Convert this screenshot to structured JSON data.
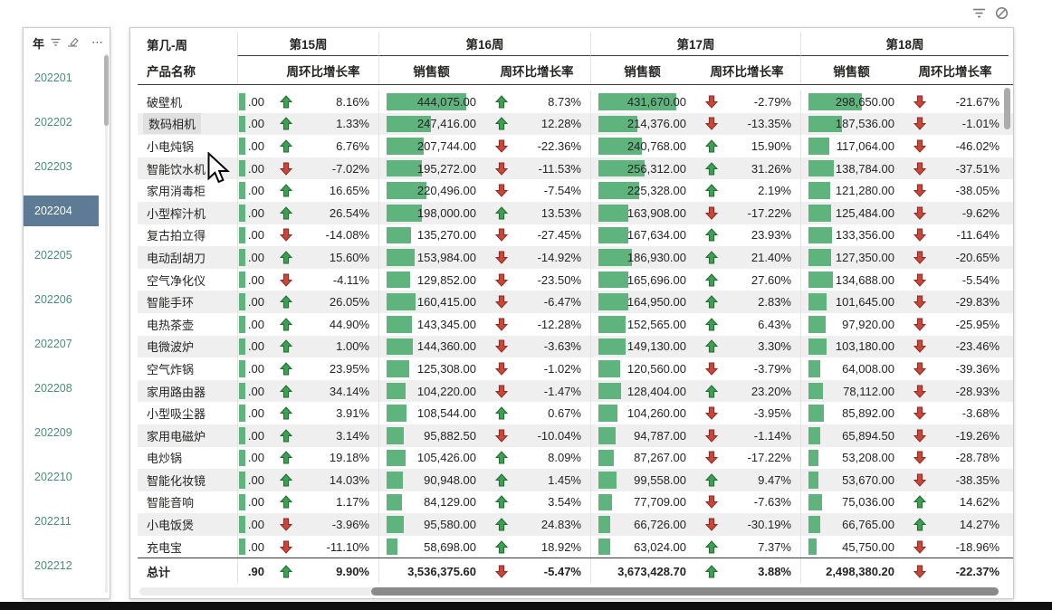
{
  "visual_header": {
    "filter_icon": "filter-icon",
    "block_icon": "block-icon"
  },
  "slicer": {
    "title": "年",
    "more_label": "⋯",
    "selected_bg": "#5d7b94",
    "item_color": "#4a8f75",
    "items": [
      {
        "label": "202201",
        "selected": false
      },
      {
        "label": "202202",
        "selected": false
      },
      {
        "label": "202203",
        "selected": false
      },
      {
        "label": "202204",
        "selected": true
      },
      {
        "label": "202205",
        "selected": false
      },
      {
        "label": "202206",
        "selected": false
      },
      {
        "label": "202207",
        "selected": false
      },
      {
        "label": "202208",
        "selected": false
      },
      {
        "label": "202209",
        "selected": false
      },
      {
        "label": "202210",
        "selected": false
      },
      {
        "label": "202211",
        "selected": false
      },
      {
        "label": "202212",
        "selected": false
      }
    ]
  },
  "matrix": {
    "corner_row1": "第几-周",
    "corner_row2": "产品名称",
    "weeks": [
      "第15周",
      "第16周",
      "第17周",
      "第18周"
    ],
    "columns": {
      "sales": "销售额",
      "rate": "周环比增长率"
    },
    "bar_color": "#5fb37c",
    "up_color": "#3f9e52",
    "down_color": "#c8473a",
    "rows": [
      {
        "name": "破壁机",
        "cut": ".00",
        "rates": [
          "8.16%",
          "8.73%",
          "-2.79%",
          "-21.67%"
        ],
        "sales": [
          "444,075.00",
          "431,670.00",
          "298,650.00"
        ]
      },
      {
        "name": "数码相机",
        "cut": ".00",
        "highlighted": true,
        "rates": [
          "1.33%",
          "12.28%",
          "-13.35%",
          "-1.01%"
        ],
        "sales": [
          "247,416.00",
          "214,376.00",
          "187,536.00"
        ]
      },
      {
        "name": "小电炖锅",
        "cut": ".00",
        "rates": [
          "6.76%",
          "-22.36%",
          "15.90%",
          "-46.02%"
        ],
        "sales": [
          "207,744.00",
          "240,768.00",
          "117,064.00"
        ]
      },
      {
        "name": "智能饮水机",
        "cut": ".00",
        "rates": [
          "-7.02%",
          "-11.53%",
          "31.26%",
          "-37.51%"
        ],
        "sales": [
          "195,272.00",
          "256,312.00",
          "138,784.00"
        ]
      },
      {
        "name": "家用消毒柜",
        "cut": ".00",
        "rates": [
          "16.65%",
          "-7.54%",
          "2.19%",
          "-38.05%"
        ],
        "sales": [
          "220,496.00",
          "225,328.00",
          "121,280.00"
        ]
      },
      {
        "name": "小型榨汁机",
        "cut": ".00",
        "rates": [
          "26.54%",
          "13.53%",
          "-17.22%",
          "-9.62%"
        ],
        "sales": [
          "198,000.00",
          "163,908.00",
          "125,484.00"
        ]
      },
      {
        "name": "复古拍立得",
        "cut": ".00",
        "rates": [
          "-14.08%",
          "-27.45%",
          "23.93%",
          "-11.64%"
        ],
        "sales": [
          "135,270.00",
          "167,634.00",
          "133,356.00"
        ]
      },
      {
        "name": "电动刮胡刀",
        "cut": ".00",
        "rates": [
          "15.60%",
          "-14.92%",
          "21.40%",
          "-20.65%"
        ],
        "sales": [
          "153,984.00",
          "186,930.00",
          "127,350.00"
        ]
      },
      {
        "name": "空气净化仪",
        "cut": ".00",
        "rates": [
          "-4.11%",
          "-23.50%",
          "27.60%",
          "-5.54%"
        ],
        "sales": [
          "129,852.00",
          "165,696.00",
          "134,688.00"
        ]
      },
      {
        "name": "智能手环",
        "cut": ".00",
        "rates": [
          "26.05%",
          "-6.47%",
          "2.83%",
          "-29.83%"
        ],
        "sales": [
          "160,415.00",
          "164,950.00",
          "101,645.00"
        ]
      },
      {
        "name": "电热茶壶",
        "cut": ".00",
        "rates": [
          "44.90%",
          "-12.28%",
          "6.43%",
          "-25.95%"
        ],
        "sales": [
          "143,345.00",
          "152,565.00",
          "97,920.00"
        ]
      },
      {
        "name": "电微波炉",
        "cut": ".00",
        "rates": [
          "1.00%",
          "-3.63%",
          "3.30%",
          "-23.46%"
        ],
        "sales": [
          "144,360.00",
          "149,130.00",
          "103,180.00"
        ]
      },
      {
        "name": "空气炸锅",
        "cut": ".00",
        "rates": [
          "23.95%",
          "-1.02%",
          "-3.79%",
          "-39.36%"
        ],
        "sales": [
          "125,308.00",
          "120,560.00",
          "64,008.00"
        ]
      },
      {
        "name": "家用路由器",
        "cut": ".00",
        "rates": [
          "34.14%",
          "-1.47%",
          "23.20%",
          "-28.93%"
        ],
        "sales": [
          "104,220.00",
          "128,404.00",
          "78,112.00"
        ]
      },
      {
        "name": "小型吸尘器",
        "cut": ".00",
        "rates": [
          "3.91%",
          "0.67%",
          "-3.95%",
          "-3.68%"
        ],
        "sales": [
          "108,544.00",
          "104,260.00",
          "85,892.00"
        ]
      },
      {
        "name": "家用电磁炉",
        "cut": ".00",
        "rates": [
          "3.14%",
          "-10.04%",
          "-1.14%",
          "-19.26%"
        ],
        "sales": [
          "95,882.50",
          "94,787.00",
          "65,894.50"
        ]
      },
      {
        "name": "电炒锅",
        "cut": ".00",
        "rates": [
          "19.18%",
          "8.09%",
          "-17.22%",
          "-28.78%"
        ],
        "sales": [
          "105,426.00",
          "87,267.00",
          "53,208.00"
        ]
      },
      {
        "name": "智能化妆镜",
        "cut": ".00",
        "rates": [
          "14.03%",
          "1.45%",
          "9.47%",
          "-38.35%"
        ],
        "sales": [
          "90,948.00",
          "99,558.00",
          "53,670.00"
        ]
      },
      {
        "name": "智能音响",
        "cut": ".00",
        "rates": [
          "1.17%",
          "3.54%",
          "-7.63%",
          "14.62%"
        ],
        "sales": [
          "84,129.00",
          "77,709.00",
          "75,036.00"
        ]
      },
      {
        "name": "小电饭煲",
        "cut": ".00",
        "rates": [
          "-3.96%",
          "24.83%",
          "-30.19%",
          "14.27%"
        ],
        "sales": [
          "95,580.00",
          "66,726.00",
          "66,765.00"
        ]
      },
      {
        "name": "充电宝",
        "cut": ".00",
        "rates": [
          "-11.10%",
          "18.92%",
          "7.37%",
          "-18.96%"
        ],
        "sales": [
          "58,698.00",
          "63,024.00",
          "45,750.00"
        ]
      }
    ],
    "total": {
      "name": "总计",
      "cut": ".90",
      "rates": [
        "9.90%",
        "-5.47%",
        "3.88%",
        "-22.37%"
      ],
      "sales": [
        "3,536,375.60",
        "3,673,428.70",
        "2,498,380.20"
      ]
    }
  }
}
